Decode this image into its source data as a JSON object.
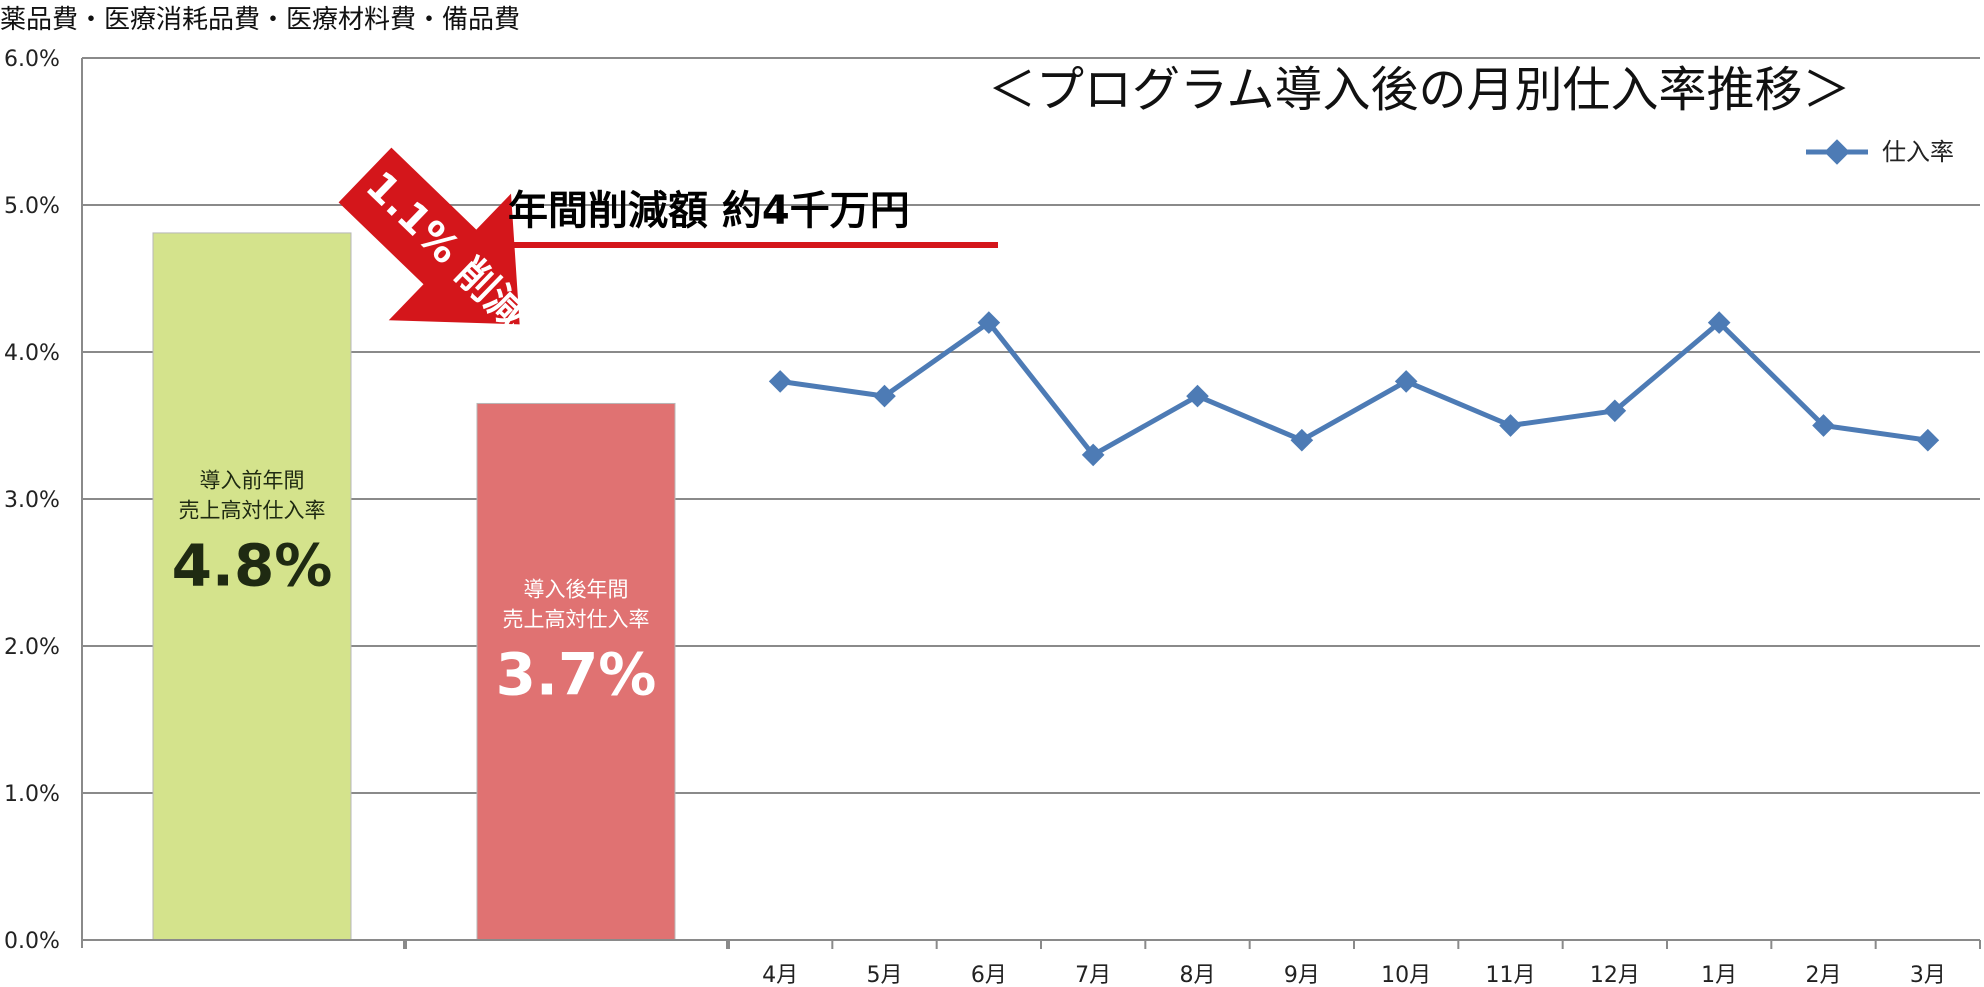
{
  "chart_data": {
    "type": "bar+line",
    "top_label": "薬品費・医療消耗品費・医療材料費・備品費",
    "title": "＜プログラム導入後の月別仕入率推移＞",
    "y_ticks": [
      "0.0%",
      "1.0%",
      "2.0%",
      "3.0%",
      "4.0%",
      "5.0%",
      "6.0%"
    ],
    "ylim": [
      0,
      6
    ],
    "grid": true,
    "legend": {
      "position": "top-right",
      "entries": [
        "仕入率"
      ]
    },
    "bars": [
      {
        "caption_line1": "導入前年間",
        "caption_line2": "売上高対仕入率",
        "value_label": "4.8%",
        "value": 4.81,
        "color": "#d4e38c",
        "text_color": "#1f2a12"
      },
      {
        "caption_line1": "導入後年間",
        "caption_line2": "売上高対仕入率",
        "value_label": "3.7%",
        "value": 3.65,
        "color": "#e07272",
        "text_color": "#ffffff"
      }
    ],
    "series": [
      {
        "name": "仕入率",
        "color": "#4d7bb5",
        "categories": [
          "4月",
          "5月",
          "6月",
          "7月",
          "8月",
          "9月",
          "10月",
          "11月",
          "12月",
          "1月",
          "2月",
          "3月"
        ],
        "values": [
          3.8,
          3.7,
          4.2,
          3.3,
          3.7,
          3.4,
          3.8,
          3.5,
          3.6,
          4.2,
          3.5,
          3.4
        ]
      }
    ],
    "annotations": {
      "banner": "年間削減額 約4千万円",
      "arrow": "1.1% 削減",
      "accent_color": "#d4161b"
    }
  }
}
